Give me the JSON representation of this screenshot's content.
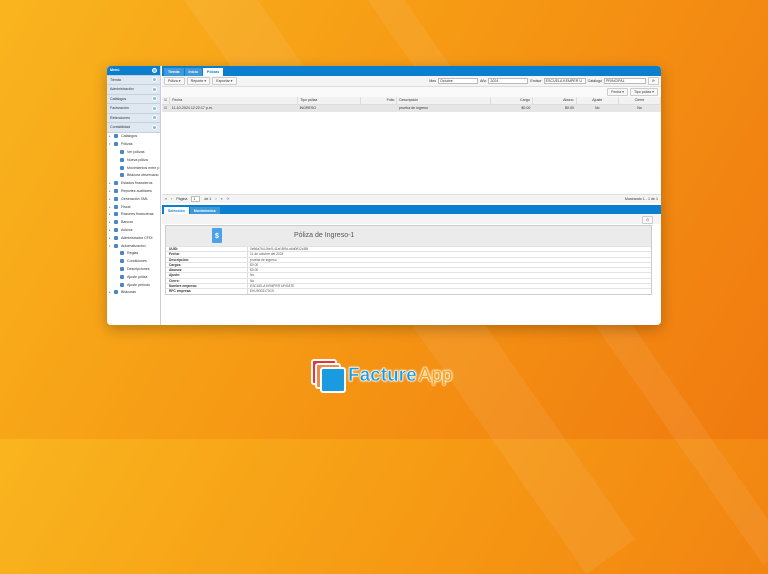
{
  "sidebar": {
    "header": "Menú",
    "sections": [
      "Tienda",
      "Administración",
      "Catálogos",
      "Facturación",
      "Retenciones",
      "Contabilidad"
    ],
    "tree": [
      {
        "label": "Catálogos",
        "level": 1,
        "arrow": "▸"
      },
      {
        "label": "Pólizas",
        "level": 1,
        "arrow": "▾"
      },
      {
        "label": "Ver pólizas",
        "level": 2
      },
      {
        "label": "Nueva póliza",
        "level": 2
      },
      {
        "label": "Movimientos entre p",
        "level": 2
      },
      {
        "label": "Bitácora observacio",
        "level": 2
      },
      {
        "label": "Estados financieros",
        "level": 1,
        "arrow": "▸"
      },
      {
        "label": "Reportes auxiliares",
        "level": 1,
        "arrow": "▸"
      },
      {
        "label": "Generación XML",
        "level": 1,
        "arrow": "▸"
      },
      {
        "label": "Fiscal",
        "level": 1,
        "arrow": "▸"
      },
      {
        "label": "Razones financieras",
        "level": 1,
        "arrow": "▸"
      },
      {
        "label": "Bancos",
        "level": 1,
        "arrow": "▸"
      },
      {
        "label": "Activos",
        "level": 1,
        "arrow": "▸"
      },
      {
        "label": "Administrador CFDI",
        "level": 1,
        "arrow": "▸"
      },
      {
        "label": "Automatización",
        "level": 1,
        "arrow": "▾"
      },
      {
        "label": "Reglas",
        "level": 2
      },
      {
        "label": "Condiciones",
        "level": 2
      },
      {
        "label": "Descripciones",
        "level": 2
      },
      {
        "label": "Ajuste póliza",
        "level": 2
      },
      {
        "label": "Ajuste periodo",
        "level": 2
      },
      {
        "label": "Bitácoras",
        "level": 1,
        "arrow": "▸"
      }
    ]
  },
  "tabs": [
    "Tienda",
    "Inicio",
    "Pólizas"
  ],
  "toolbar": {
    "polizas": "Póliza",
    "reporte": "Reporte",
    "exportar": "Exportar",
    "mes_label": "Mes",
    "mes": "Octubre",
    "anio_label": "Año",
    "anio": "2024",
    "emisor_label": "Emisor",
    "emisor": "ESCUELA KEMPER U",
    "catalogo_label": "Catálogo",
    "catalogo": "PRINCIPAL",
    "fecha_filter": "Fecha",
    "tipo_filter": "Tipo póliza"
  },
  "table": {
    "headers": [
      "Fecha",
      "Tipo póliza",
      "Folio",
      "Descripción",
      "Cargo",
      "Abono",
      "Ajuste",
      "Cierre"
    ],
    "rows": [
      [
        "11-10-2024 12:22:17 p.m.",
        "INGRESO",
        "",
        "prueba de ingreso",
        "$0.00",
        "$0.00",
        "No",
        "No"
      ]
    ]
  },
  "pager": {
    "page_label": "Página",
    "page": "1",
    "of": "de 1",
    "showing": "Mostrando 1 - 1 de 1"
  },
  "detail": {
    "tabs": [
      "Selección",
      "Movimientos"
    ],
    "title": "Póliza de Ingreso-1",
    "fields": [
      {
        "k": "UUID:",
        "v": "0e66a764-0bc9-41af-8f5d-a6d0ff12c38f"
      },
      {
        "k": "Fecha:",
        "v": "11 de octubre del 2024"
      },
      {
        "k": "Descripción:",
        "v": "prueba de ingreso"
      },
      {
        "k": "Cargos:",
        "v": "$0.00"
      },
      {
        "k": "Abonos:",
        "v": "$0.00"
      },
      {
        "k": "Ajuste:",
        "v": "No"
      },
      {
        "k": "Cierre:",
        "v": "No"
      },
      {
        "k": "Nombre empresa:",
        "v": "ESCUELA KEMPER URGATE"
      },
      {
        "k": "RFC empresa:",
        "v": "EKU9003173C9"
      }
    ]
  },
  "logo": {
    "text1": "Facture",
    "text2": "App"
  },
  "colors": {
    "accent": "#0a7fd0",
    "bg": "#f69a14"
  }
}
